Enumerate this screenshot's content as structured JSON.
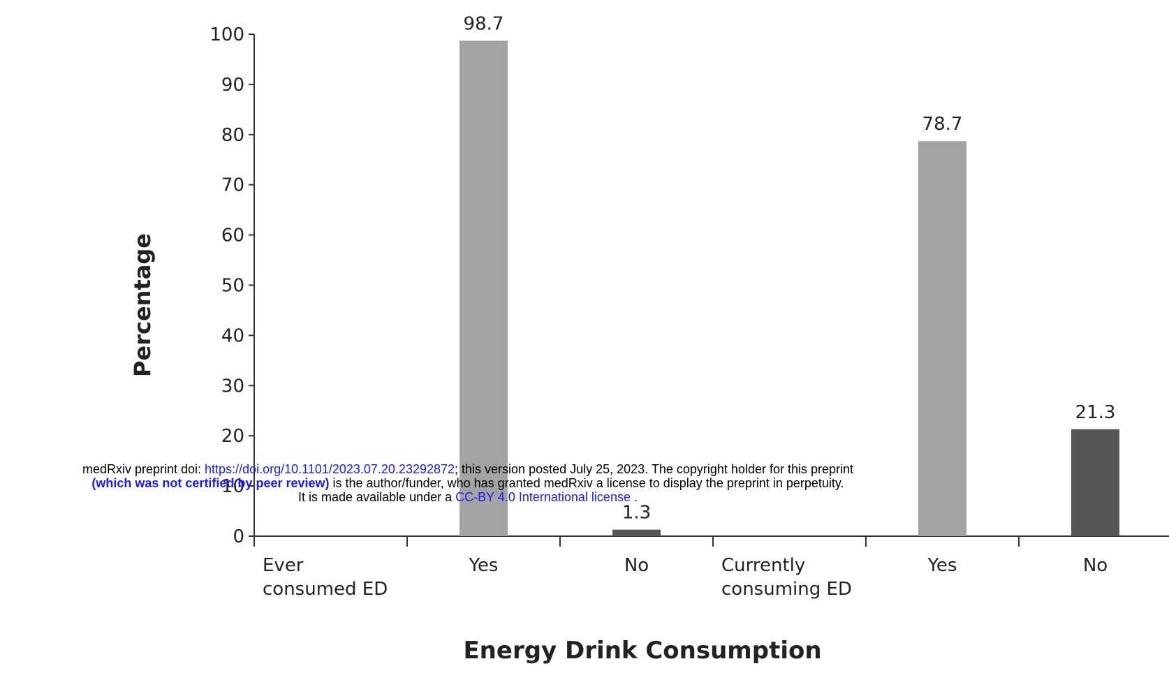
{
  "chart_data": {
    "type": "bar",
    "categories": [
      "Ever consumed ED",
      "Yes",
      "No",
      "Currently consuming ED",
      "Yes",
      "No"
    ],
    "category_lines": [
      [
        "Ever",
        "consumed ED"
      ],
      [
        "Yes"
      ],
      [
        "No"
      ],
      [
        "Currently",
        "consuming ED"
      ],
      [
        "Yes"
      ],
      [
        "No"
      ]
    ],
    "values": [
      null,
      98.7,
      1.3,
      null,
      78.7,
      21.3
    ],
    "value_labels": [
      "",
      "98.7",
      "1.3",
      "",
      "78.7",
      "21.3"
    ],
    "bar_colors": [
      "",
      "#a3a3a3",
      "#575757",
      "",
      "#a3a3a3",
      "#575757"
    ],
    "xlabel": "Energy Drink Consumption",
    "ylabel": "Percentage",
    "ylim": [
      0,
      100
    ],
    "yticks": [
      0,
      10,
      20,
      30,
      40,
      50,
      60,
      70,
      80,
      90,
      100
    ],
    "grid": false,
    "legend": "none"
  },
  "notice": {
    "line1_prefix": "medRxiv preprint doi: ",
    "doi_link": "https://doi.org/10.1101/2023.07.20.23292872",
    "line1_suffix": "; this version posted July 25, 2023. The copyright holder for this preprint",
    "line2_bold": "(which was not certified by peer review)",
    "line2_rest": " is the author/funder, who has granted medRxiv a license to display the preprint in perpetuity.",
    "line3_prefix": "It is made available under a ",
    "license_link": "CC-BY 4.0 International license",
    "line3_suffix": " ."
  }
}
